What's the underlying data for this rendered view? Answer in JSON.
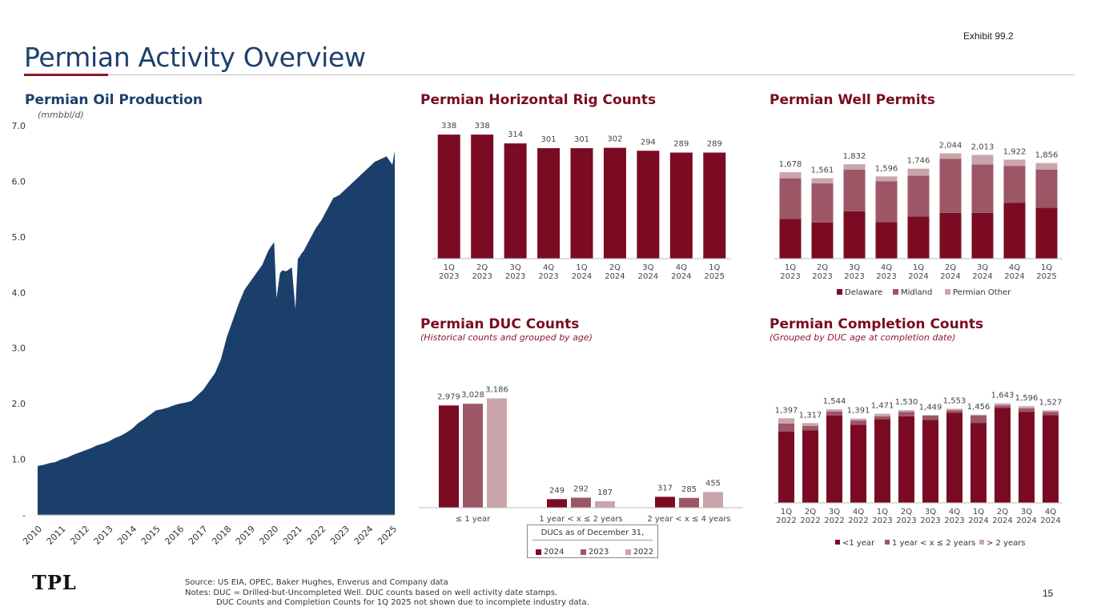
{
  "header": {
    "title": "Permian Activity Overview",
    "exhibit": "Exhibit 99.2"
  },
  "colors": {
    "navy": "#1b3f6b",
    "maroon": "#7b0b22",
    "mid": "#9c5666",
    "light": "#c9a5ab"
  },
  "sections": {
    "oil": {
      "title": "Permian Oil Production",
      "subtitle": "(mmbbl/d)"
    },
    "rigs": {
      "title": "Permian Horizontal Rig Counts"
    },
    "permits": {
      "title": "Permian Well Permits"
    },
    "duc": {
      "title": "Permian DUC Counts",
      "subtitle": "(Historical counts and grouped by age)"
    },
    "completions": {
      "title": "Permian Completion Counts",
      "subtitle": "(Grouped by DUC age at completion date)"
    }
  },
  "chart_data": [
    {
      "id": "oil",
      "type": "area",
      "title": "Permian Oil Production",
      "ylabel": "(mmbbl/d)",
      "ylim": [
        0,
        7
      ],
      "yticks": [
        "-",
        "1.0",
        "2.0",
        "3.0",
        "4.0",
        "5.0",
        "6.0",
        "7.0"
      ],
      "xticks": [
        "2010",
        "2011",
        "2012",
        "2013",
        "2014",
        "2015",
        "2016",
        "2017",
        "2018",
        "2019",
        "2020",
        "2021",
        "2022",
        "2023",
        "2024",
        "2025"
      ],
      "x": [
        2010.0,
        2010.25,
        2010.5,
        2010.75,
        2011.0,
        2011.25,
        2011.5,
        2011.75,
        2012.0,
        2012.25,
        2012.5,
        2012.75,
        2013.0,
        2013.25,
        2013.5,
        2013.75,
        2014.0,
        2014.25,
        2014.5,
        2014.75,
        2015.0,
        2015.25,
        2015.5,
        2015.75,
        2016.0,
        2016.25,
        2016.5,
        2016.75,
        2017.0,
        2017.25,
        2017.5,
        2017.75,
        2018.0,
        2018.25,
        2018.5,
        2018.75,
        2019.0,
        2019.25,
        2019.5,
        2019.75,
        2019.9,
        2020.0,
        2020.1,
        2020.25,
        2020.35,
        2020.5,
        2020.75,
        2020.9,
        2021.0,
        2021.08,
        2021.15,
        2021.25,
        2021.5,
        2021.75,
        2022.0,
        2022.25,
        2022.5,
        2022.75,
        2023.0,
        2023.25,
        2023.5,
        2023.75,
        2024.0,
        2024.25,
        2024.5,
        2024.75,
        2025.0,
        2025.1
      ],
      "values": [
        0.88,
        0.9,
        0.93,
        0.95,
        1.0,
        1.03,
        1.08,
        1.12,
        1.16,
        1.2,
        1.25,
        1.28,
        1.32,
        1.38,
        1.42,
        1.48,
        1.55,
        1.65,
        1.72,
        1.8,
        1.88,
        1.9,
        1.93,
        1.97,
        2.0,
        2.02,
        2.05,
        2.15,
        2.25,
        2.4,
        2.55,
        2.8,
        3.2,
        3.5,
        3.8,
        4.05,
        4.2,
        4.35,
        4.5,
        4.75,
        4.85,
        4.9,
        3.9,
        4.35,
        4.4,
        4.38,
        4.45,
        3.7,
        4.6,
        4.65,
        4.7,
        4.75,
        4.95,
        5.15,
        5.3,
        5.5,
        5.7,
        5.75,
        5.85,
        5.95,
        6.05,
        6.15,
        6.25,
        6.35,
        6.4,
        6.45,
        6.3,
        6.55
      ],
      "color": "#1b3f6b"
    },
    {
      "id": "rigs",
      "type": "bar",
      "title": "Permian Horizontal Rig Counts",
      "categories": [
        "1Q\n2023",
        "2Q\n2023",
        "3Q\n2023",
        "4Q\n2023",
        "1Q\n2024",
        "2Q\n2024",
        "3Q\n2024",
        "4Q\n2024",
        "1Q\n2025"
      ],
      "values": [
        338,
        338,
        314,
        301,
        301,
        302,
        294,
        289,
        289
      ],
      "labels": [
        "338",
        "338",
        "314",
        "301",
        "301",
        "302",
        "294",
        "289",
        "289"
      ],
      "ylim": [
        0,
        360
      ]
    },
    {
      "id": "permits",
      "type": "bar",
      "stacked": true,
      "title": "Permian Well Permits",
      "categories": [
        "1Q\n2023",
        "2Q\n2023",
        "3Q\n2023",
        "4Q\n2023",
        "1Q\n2024",
        "2Q\n2024",
        "3Q\n2024",
        "4Q\n2024",
        "1Q\n2025"
      ],
      "series": [
        {
          "name": "Delaware",
          "values": [
            770,
            700,
            920,
            710,
            820,
            890,
            890,
            1080,
            990
          ]
        },
        {
          "name": "Midland",
          "values": [
            790,
            760,
            810,
            790,
            790,
            1050,
            940,
            720,
            740
          ]
        },
        {
          "name": "Permian Other",
          "values": [
            118,
            101,
            102,
            96,
            136,
            104,
            183,
            122,
            126
          ]
        }
      ],
      "totals": [
        "1,678",
        "1,561",
        "1,832",
        "1,596",
        "1,746",
        "2,044",
        "2,013",
        "1,922",
        "1,856"
      ],
      "ylim": [
        0,
        2300
      ],
      "legend": [
        "Delaware",
        "Midland",
        "Permian Other"
      ]
    },
    {
      "id": "duc",
      "type": "bar",
      "title": "Permian DUC Counts",
      "categories": [
        "≤ 1 year",
        "1 year < x ≤  2 years",
        "2 year < x ≤  4 years"
      ],
      "series": [
        {
          "name": "2024",
          "values": [
            2979,
            249,
            317
          ]
        },
        {
          "name": "2023",
          "values": [
            3028,
            292,
            285
          ]
        },
        {
          "name": "2022",
          "values": [
            3186,
            187,
            455
          ]
        }
      ],
      "labels": [
        [
          "2,979",
          "3,028",
          "3,186"
        ],
        [
          "249",
          "292",
          "187"
        ],
        [
          "317",
          "285",
          "455"
        ]
      ],
      "ylim": [
        0,
        3500
      ],
      "legend_title": "DUCs as of December 31,",
      "legend": [
        "2024",
        "2023",
        "2022"
      ]
    },
    {
      "id": "completions",
      "type": "bar",
      "stacked": true,
      "title": "Permian Completion Counts",
      "categories": [
        "1Q\n2022",
        "2Q\n2022",
        "3Q\n2022",
        "4Q\n2022",
        "1Q\n2023",
        "2Q\n2023",
        "3Q\n2023",
        "4Q\n2023",
        "1Q\n2024",
        "2Q\n2024",
        "3Q\n2024",
        "4Q\n2024"
      ],
      "series": [
        {
          "name": "<1 year",
          "values": [
            1180,
            1200,
            1440,
            1290,
            1380,
            1430,
            1370,
            1490,
            1320,
            1570,
            1500,
            1450
          ]
        },
        {
          "name": "1 year < x ≤ 2 years",
          "values": [
            130,
            70,
            70,
            70,
            50,
            70,
            70,
            40,
            120,
            40,
            60,
            50
          ]
        },
        {
          "name": "> 2 years",
          "values": [
            87,
            47,
            34,
            31,
            41,
            30,
            9,
            23,
            16,
            33,
            36,
            27
          ]
        }
      ],
      "totals": [
        "1,397",
        "1,317",
        "1,544",
        "1,391",
        "1,471",
        "1,530",
        "1,449",
        "1,553",
        "1,456",
        "1,643",
        "1,596",
        "1,527"
      ],
      "ylim": [
        0,
        1850
      ],
      "legend": [
        "<1 year",
        "1 year < x ≤ 2 years",
        "> 2 years"
      ]
    }
  ],
  "footer": {
    "line1": "Source: US EIA, OPEC, Baker Hughes, Enverus and Company data",
    "line2": "Notes:   DUC = Drilled-but-Uncompleted Well. DUC counts based on well activity date stamps.",
    "line3": "DUC Counts and Completion Counts for 1Q 2025 not shown due to incomplete industry data.",
    "logo": "TPL",
    "page_number": "15"
  }
}
